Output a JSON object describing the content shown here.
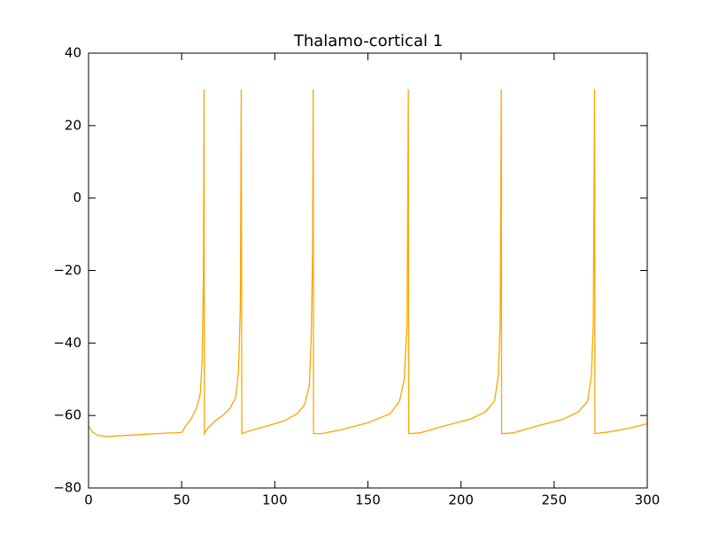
{
  "chart_data": {
    "type": "line",
    "title": "Thalamo-cortical 1",
    "color": "#ffa500",
    "x": [
      0,
      2,
      5,
      10,
      20,
      30,
      40,
      50,
      52,
      55,
      58,
      60,
      61,
      61.7,
      62,
      62.2,
      64,
      68,
      72,
      76,
      79,
      80.5,
      81.5,
      82,
      82.3,
      88,
      95,
      105,
      112,
      116,
      118.5,
      119.5,
      120.3,
      120.6,
      120.8,
      125,
      135,
      150,
      162,
      167,
      169.5,
      171,
      171.7,
      171.9,
      178,
      190,
      205,
      213,
      218,
      220,
      221,
      221.6,
      221.8,
      228,
      240,
      255,
      263,
      268,
      270,
      271,
      271.7,
      271.9,
      280,
      290,
      300
    ],
    "values": [
      -63,
      -64.5,
      -65.5,
      -65.8,
      -65.5,
      -65.2,
      -64.9,
      -64.7,
      -63,
      -61,
      -58,
      -54,
      -45,
      -20,
      30,
      -65,
      -63.5,
      -61.5,
      -60,
      -58,
      -55,
      -48,
      -30,
      30,
      -65,
      -64,
      -63,
      -61.5,
      -59.5,
      -57,
      -52,
      -40,
      -15,
      30,
      -65,
      -65,
      -64,
      -62,
      -59.5,
      -56,
      -50,
      -35,
      30,
      -65,
      -64.8,
      -63,
      -61,
      -59,
      -56,
      -49,
      -35,
      30,
      -65,
      -64.8,
      -63,
      -61,
      -59,
      -56,
      -49,
      -35,
      30,
      -65,
      -64.5,
      -63.5,
      -62.3
    ],
    "xlim": [
      0,
      300
    ],
    "xticks": [
      0,
      50,
      100,
      150,
      200,
      250,
      300
    ],
    "ylim": [
      -80,
      40
    ],
    "yticks": [
      {
        "value": -80,
        "label": "−80"
      },
      {
        "value": -60,
        "label": "−60"
      },
      {
        "value": -40,
        "label": "−40"
      },
      {
        "value": -20,
        "label": "−20"
      },
      0,
      20,
      40
    ]
  }
}
